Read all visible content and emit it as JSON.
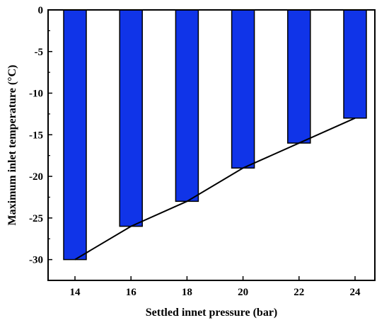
{
  "chart_data": {
    "type": "bar",
    "title": "",
    "xlabel": "Settled innet pressure (bar)",
    "ylabel": "Maximum inlet temperature (°C)",
    "categories": [
      "14",
      "16",
      "18",
      "20",
      "22",
      "24"
    ],
    "values": [
      -30,
      -26,
      -23,
      -19,
      -16,
      -13
    ],
    "ylim": [
      -32.5,
      0
    ],
    "yticks": [
      "0",
      "-5",
      "-10",
      "-15",
      "-20",
      "-25",
      "-30"
    ],
    "ytick_values": [
      0,
      -5,
      -10,
      -15,
      -20,
      -25,
      -30
    ],
    "bar_color": "#1034e8",
    "trend_line": true,
    "grid": false
  }
}
